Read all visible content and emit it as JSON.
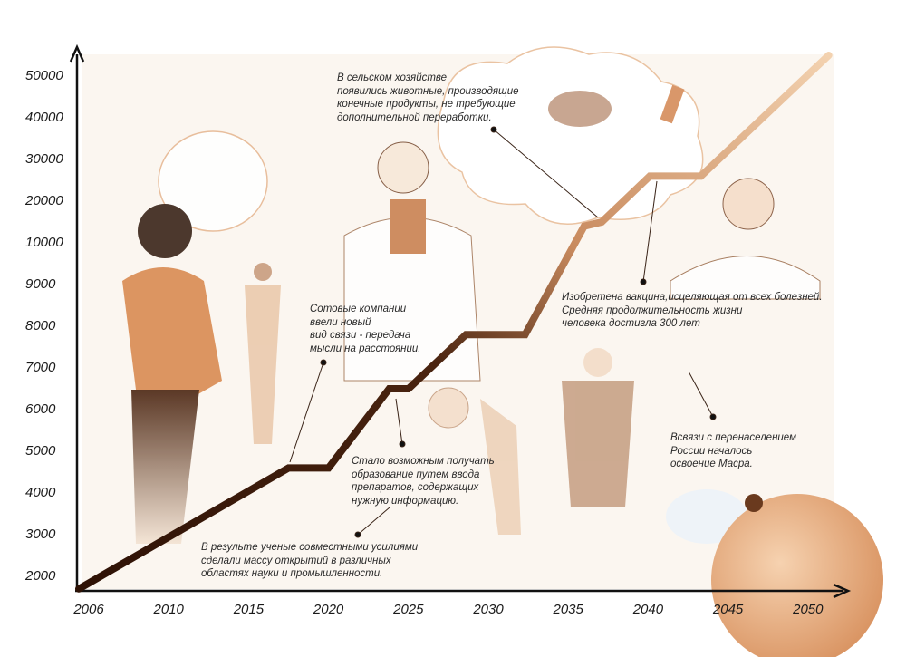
{
  "chart_data": {
    "type": "line",
    "title": "",
    "xlabel": "",
    "ylabel": "",
    "x_ticks": [
      "2006",
      "2010",
      "2015",
      "2020",
      "2025",
      "2030",
      "2035",
      "2040",
      "2045",
      "2050"
    ],
    "y_ticks": [
      "2000",
      "3000",
      "4000",
      "5000",
      "6000",
      "7000",
      "8000",
      "9000",
      "10000",
      "20000",
      "30000",
      "40000",
      "50000"
    ],
    "y_scale": "non-uniform (1000 steps up to 10000, then 10000 steps)",
    "grid": false,
    "series": [
      {
        "points": [
          {
            "x": 2005.5,
            "y": 1700
          },
          {
            "x": 2017.5,
            "y": 4600
          },
          {
            "x": 2020,
            "y": 4600
          },
          {
            "x": 2023.8,
            "y": 6500
          },
          {
            "x": 2025,
            "y": 6500
          },
          {
            "x": 2028.6,
            "y": 7800
          },
          {
            "x": 2032.3,
            "y": 7800
          },
          {
            "x": 2036,
            "y": 14000
          },
          {
            "x": 2037.1,
            "y": 15000
          },
          {
            "x": 2040.1,
            "y": 26000
          },
          {
            "x": 2043.3,
            "y": 26000
          },
          {
            "x": 2051.3,
            "y": 55000
          }
        ],
        "color_start": "#2e1206",
        "color_end": "#f3d2b0"
      }
    ],
    "annotations": [
      {
        "id": "agriculture",
        "text": "В сельском хозяйстве\nпоявились животные, производящие\nконечные продукты, не требующие\nдополнительной переработки."
      },
      {
        "id": "vaccine",
        "text": "Изобретена вакцина,исцеляющая от всех болезней.\nСредняя продолжительность жизни\nчеловека достигла 300 лет"
      },
      {
        "id": "telepathy",
        "text": "Сотовые компании\nввели новый\nвид связи - передача\nмысли на расстоянии."
      },
      {
        "id": "education",
        "text": "Стало возможным получать\nобразование путем ввода\nпрепаратов, содержащих\nнужную информацию."
      },
      {
        "id": "discoveries",
        "text": "В результе ученые совместными усилиями\nсделали массу открытий в различных\nобластях науки и промышленности."
      },
      {
        "id": "mars",
        "text": "Всвязи с перенаселением\nРоссии началось\nосвоение Масра."
      }
    ]
  },
  "colors": {
    "background": "#fbf6f0",
    "accent": "#d9976a",
    "axis": "#111111"
  }
}
